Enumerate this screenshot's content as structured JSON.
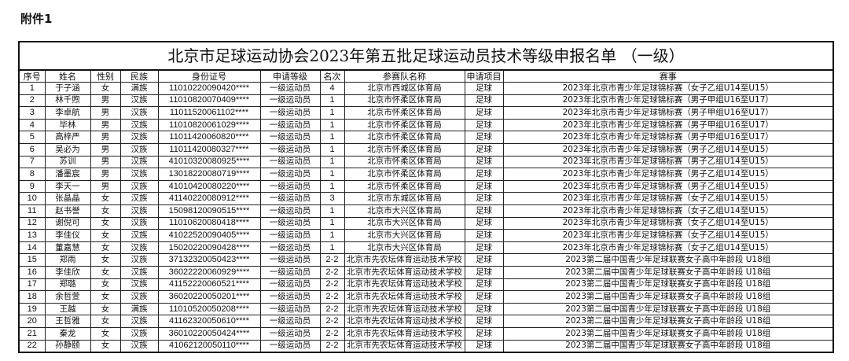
{
  "attachment": "附件1",
  "title": "北京市足球运动协会2023年第五批足球运动员技术等级申报名单 （一级）",
  "headers": [
    "序号",
    "姓名",
    "性别",
    "民族",
    "身份证号",
    "申请等级",
    "名次",
    "参赛队名称",
    "申请项目",
    "赛事"
  ],
  "rows": [
    [
      "1",
      "于子涵",
      "女",
      "满族",
      "11010220090420****",
      "一级运动员",
      "4",
      "北京市西城区体育局",
      "足球",
      "2023年北京市青少年足球锦标赛（女子乙组U14至U15）"
    ],
    [
      "2",
      "林千煦",
      "男",
      "汉族",
      "11010820070409****",
      "一级运动员",
      "1",
      "北京市怀柔区体育局",
      "足球",
      "2023年北京市青少年足球锦标赛（男子甲组U16至U17）"
    ],
    [
      "3",
      "李卓航",
      "男",
      "汉族",
      "11011520061102****",
      "一级运动员",
      "1",
      "北京市怀柔区体育局",
      "足球",
      "2023年北京市青少年足球锦标赛（男子甲组U16至U17）"
    ],
    [
      "4",
      "毕林",
      "男",
      "汉族",
      "11010820061029****",
      "一级运动员",
      "1",
      "北京市怀柔区体育局",
      "足球",
      "2023年北京市青少年足球锦标赛（男子甲组U16至U17）"
    ],
    [
      "5",
      "高梓严",
      "男",
      "汉族",
      "11011420060820****",
      "一级运动员",
      "1",
      "北京市怀柔区体育局",
      "足球",
      "2023年北京市青少年足球锦标赛（男子甲组U16至U17）"
    ],
    [
      "6",
      "吴必为",
      "男",
      "汉族",
      "11011420080327****",
      "一级运动员",
      "1",
      "北京市怀柔区体育局",
      "足球",
      "2023年北京市青少年足球锦标赛（男子乙组U14至U15）"
    ],
    [
      "7",
      "苏训",
      "男",
      "汉族",
      "41010320080925****",
      "一级运动员",
      "1",
      "北京市怀柔区体育局",
      "足球",
      "2023年北京市青少年足球锦标赛（男子乙组U14至U15）"
    ],
    [
      "8",
      "潘墨宸",
      "男",
      "汉族",
      "13018220080719****",
      "一级运动员",
      "1",
      "北京市怀柔区体育局",
      "足球",
      "2023年北京市青少年足球锦标赛（男子乙组U14至U15）"
    ],
    [
      "9",
      "李天一",
      "男",
      "汉族",
      "41010420080220****",
      "一级运动员",
      "1",
      "北京市怀柔区体育局",
      "足球",
      "2023年北京市青少年足球锦标赛（男子乙组U14至U15）"
    ],
    [
      "10",
      "张晶晶",
      "女",
      "汉族",
      "41140220080912****",
      "一级运动员",
      "3",
      "北京市东城区体育局",
      "足球",
      "2023年北京市青少年足球锦标赛（女子乙组U14至U15）"
    ],
    [
      "11",
      "赵书誉",
      "女",
      "汉族",
      "15098120090515****",
      "一级运动员",
      "1",
      "北京市大兴区体育局",
      "足球",
      "2023年北京市青少年足球锦标赛（女子乙组U14至U15）"
    ],
    [
      "12",
      "谢倪可",
      "女",
      "汉族",
      "11010620080418****",
      "一级运动员",
      "1",
      "北京市大兴区体育局",
      "足球",
      "2023年北京市青少年足球锦标赛（女子乙组U14至U15）"
    ],
    [
      "13",
      "李佳仪",
      "女",
      "汉族",
      "41022520090405****",
      "一级运动员",
      "1",
      "北京市大兴区体育局",
      "足球",
      "2023年北京市青少年足球锦标赛（女子乙组U14至U15）"
    ],
    [
      "14",
      "董嘉慧",
      "女",
      "汉族",
      "15020220090428****",
      "一级运动员",
      "1",
      "北京市大兴区体育局",
      "足球",
      "2023年北京市青少年足球锦标赛（女子乙组U14至U15）"
    ],
    [
      "15",
      "郑雨",
      "女",
      "汉族",
      "37132320050423****",
      "一级运动员",
      "2-2",
      "北京市先农坛体育运动技术学校",
      "足球",
      "2023第二届中国青少年足球联赛女子高中年龄段 U18组"
    ],
    [
      "16",
      "李佳欣",
      "女",
      "汉族",
      "36022220060929****",
      "一级运动员",
      "2-2",
      "北京市先农坛体育运动技术学校",
      "足球",
      "2023第二届中国青少年足球联赛女子高中年龄段 U18组"
    ],
    [
      "17",
      "郑璐",
      "女",
      "汉族",
      "41152220060521****",
      "一级运动员",
      "2-2",
      "北京市先农坛体育运动技术学校",
      "足球",
      "2023第二届中国青少年足球联赛女子高中年龄段 U18组"
    ],
    [
      "18",
      "余哲萱",
      "女",
      "汉族",
      "36020220050201****",
      "一级运动员",
      "2-2",
      "北京市先农坛体育运动技术学校",
      "足球",
      "2023第二届中国青少年足球联赛女子高中年龄段 U18组"
    ],
    [
      "19",
      "王越",
      "女",
      "满族",
      "11010520050208****",
      "一级运动员",
      "2-2",
      "北京市先农坛体育运动技术学校",
      "足球",
      "2023第二届中国青少年足球联赛女子高中年龄段 U18组"
    ],
    [
      "20",
      "王哲雅",
      "女",
      "汉族",
      "41162320050610****",
      "一级运动员",
      "2-2",
      "北京市先农坛体育运动技术学校",
      "足球",
      "2023第二届中国青少年足球联赛女子高中年龄段 U18组"
    ],
    [
      "21",
      "秦龙",
      "女",
      "汉族",
      "36010220050424****",
      "一级运动员",
      "2-2",
      "北京市先农坛体育运动技术学校",
      "足球",
      "2023第二届中国青少年足球联赛女子高中年龄段 U18组"
    ],
    [
      "22",
      "孙静颐",
      "女",
      "汉族",
      "41062120050110****",
      "一级运动员",
      "2-2",
      "北京市先农坛体育运动技术学校",
      "足球",
      "2023第二届中国青少年足球联赛女子高中年龄段 U18组"
    ]
  ]
}
